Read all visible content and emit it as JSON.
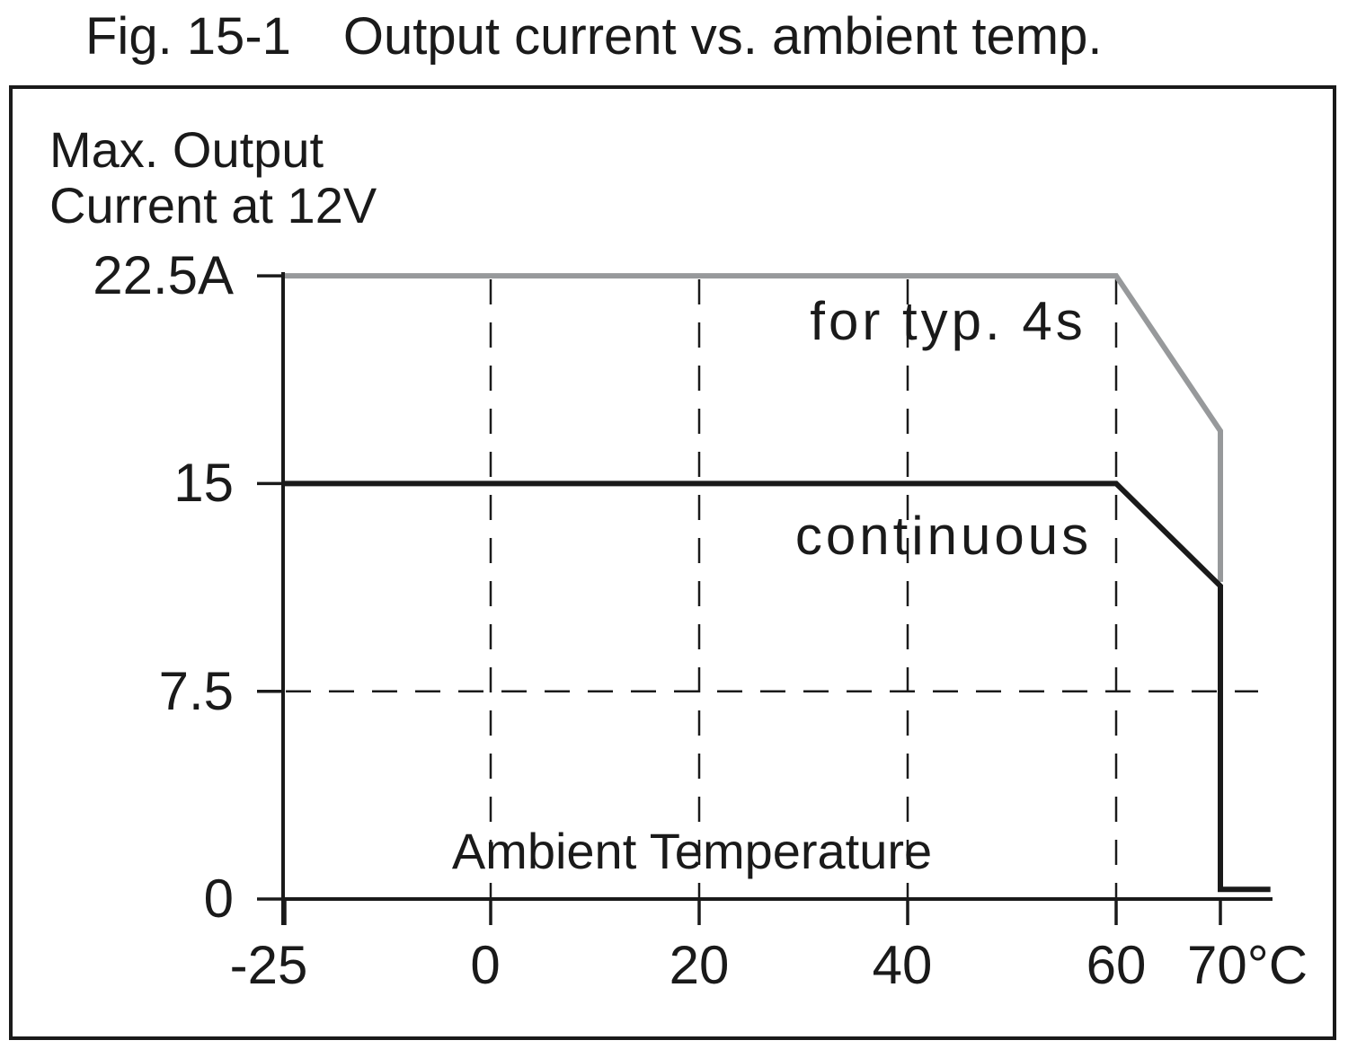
{
  "figure": {
    "title_prefix": "Fig. 15-1",
    "title_main": "Output current vs. ambient temp."
  },
  "colors": {
    "black": "#1a1a1a",
    "gray": "#97999b",
    "background": "#ffffff"
  },
  "chart_data": {
    "type": "line",
    "title": "Output current vs. ambient temp.",
    "ylabel_line1": "Max. Output",
    "ylabel_line2": "Current at 12V",
    "xlabel": "Ambient Temperature",
    "x_unit": "°C",
    "y_unit": "A",
    "xlim": [
      -25,
      75
    ],
    "ylim": [
      0,
      22.5
    ],
    "grid": {
      "style": "dashed",
      "vertical_at": [
        0,
        20,
        40,
        60
      ],
      "horizontal_at": [
        7.5
      ]
    },
    "x_ticks": [
      {
        "value": -25,
        "label": "-25"
      },
      {
        "value": 0,
        "label": "0"
      },
      {
        "value": 20,
        "label": "20"
      },
      {
        "value": 40,
        "label": "40"
      },
      {
        "value": 60,
        "label": "60"
      },
      {
        "value": 70,
        "label": "70°C"
      }
    ],
    "y_ticks": [
      {
        "value": 22.5,
        "label": "22.5A"
      },
      {
        "value": 15,
        "label": "15"
      },
      {
        "value": 7.5,
        "label": "7.5"
      },
      {
        "value": 0,
        "label": "0"
      }
    ],
    "series": [
      {
        "name": "for typ. 4s",
        "color": "#97999b",
        "points": [
          [
            -25,
            22.5
          ],
          [
            60,
            22.5
          ],
          [
            70,
            16.9
          ],
          [
            70,
            11.45
          ]
        ]
      },
      {
        "name": "continuous",
        "color": "#1a1a1a",
        "points": [
          [
            -25,
            15
          ],
          [
            60,
            15
          ],
          [
            70,
            11.3
          ],
          [
            70,
            0.35
          ],
          [
            74.8,
            0.35
          ]
        ]
      }
    ]
  }
}
